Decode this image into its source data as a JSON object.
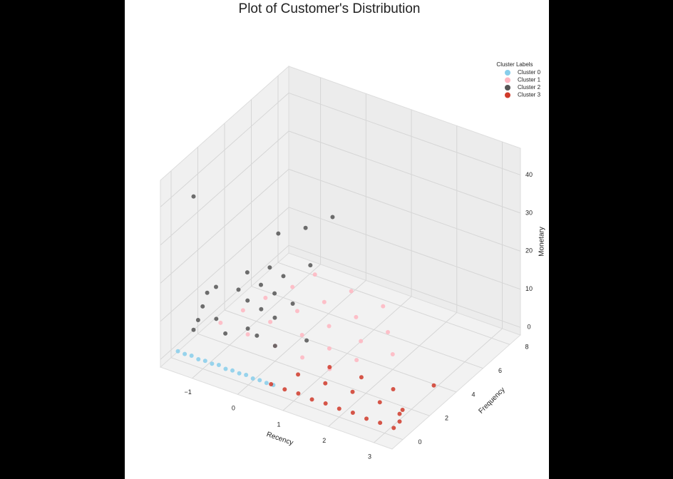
{
  "chart_data": {
    "type": "scatter3d",
    "title": "Plot of Customer's Distribution",
    "xlabel": "Recency",
    "ylabel": "Frequency",
    "zlabel": "Monetary",
    "legend_title": "Cluster Labels",
    "legend": "upper right",
    "grid": true,
    "xlim": [
      -1.7,
      3.4
    ],
    "ylim": [
      -0.8,
      8.8
    ],
    "zlim": [
      -2,
      47
    ],
    "xticks": [
      {
        "value": -1,
        "label": "−1"
      },
      0,
      1,
      2,
      3
    ],
    "yticks": [
      0,
      2,
      4,
      6,
      8
    ],
    "zticks": [
      0,
      10,
      20,
      30,
      40
    ],
    "series": [
      {
        "name": "Cluster 0",
        "color": "#87ceeb",
        "x": [
          -1.55,
          -1.4,
          -1.25,
          -1.1,
          -0.95,
          -0.8,
          -0.65,
          -0.5,
          -0.35,
          -0.2,
          -0.05,
          0.1,
          0.25,
          0.4,
          0.55
        ],
        "y": [
          0,
          0,
          0,
          0,
          0,
          0,
          0,
          0,
          0,
          0,
          0,
          0,
          0,
          0,
          0
        ],
        "z": [
          0.3,
          0.2,
          0.4,
          0.1,
          0.3,
          0.2,
          0.5,
          0.1,
          0.3,
          0.2,
          0.4,
          0.1,
          0.3,
          0.2,
          0.3
        ]
      },
      {
        "name": "Cluster 1",
        "color": "#ffb6c1",
        "x": [
          -1.2,
          -0.6,
          0.0,
          0.6,
          1.2,
          -1.0,
          -0.4,
          0.3,
          0.9,
          1.5,
          -0.8,
          -0.1,
          0.6,
          1.3,
          2.0,
          -0.5,
          0.2,
          0.9,
          1.6,
          -0.3,
          0.5,
          1.2
        ],
        "y": [
          2,
          2,
          2,
          2,
          2,
          3,
          3,
          3,
          3,
          3,
          4,
          4,
          4,
          4,
          4,
          5,
          5,
          5,
          5,
          6,
          6,
          6
        ],
        "z": [
          3,
          2.5,
          2,
          1.5,
          1,
          4,
          3.5,
          3,
          2,
          1.5,
          5,
          4.5,
          3.5,
          2.5,
          2,
          6,
          5,
          4,
          3,
          7,
          6,
          5
        ]
      },
      {
        "name": "Cluster 2",
        "color": "#555555",
        "x": [
          -1.5,
          -1.4,
          -1.3,
          -1.2,
          -1.0,
          -0.8,
          -0.6,
          -0.4,
          -1.3,
          -1.1,
          -0.9,
          -0.6,
          -0.3,
          -1.2,
          -0.9,
          -0.6,
          -0.2,
          -1.0,
          -0.7,
          -0.4,
          -1.4,
          -1.5,
          -0.8,
          -0.5,
          0.0,
          0.4
        ],
        "y": [
          1,
          1,
          1,
          1,
          1,
          1,
          2,
          2,
          2,
          3,
          3,
          3,
          3,
          4,
          4,
          4,
          4,
          5,
          5,
          6,
          7,
          1,
          7,
          8,
          2,
          3
        ],
        "z": [
          3,
          6,
          10,
          14,
          8,
          5,
          4,
          3,
          12,
          9,
          7,
          6,
          5,
          10,
          8,
          7,
          6,
          9,
          8,
          9,
          10,
          38,
          14,
          15,
          2,
          2
        ]
      },
      {
        "name": "Cluster 3",
        "color": "#d03a2a",
        "x": [
          0.5,
          0.8,
          1.1,
          1.4,
          1.7,
          2.0,
          2.3,
          2.6,
          2.9,
          3.2,
          0.8,
          1.4,
          2.0,
          2.6,
          3.1,
          1.2,
          1.9,
          2.6,
          3.2,
          3.3,
          3.3
        ],
        "y": [
          0,
          0,
          0,
          0,
          0,
          0,
          0,
          0,
          0,
          0,
          1,
          1,
          1,
          1,
          1,
          2,
          2,
          2,
          3,
          0.1,
          0.1
        ],
        "z": [
          0.3,
          0.2,
          0.4,
          0.1,
          0.3,
          0.2,
          0.4,
          0.1,
          0.3,
          0.2,
          1,
          1.2,
          1.5,
          1.3,
          1.4,
          1.5,
          1.8,
          1.6,
          2,
          2,
          4
        ]
      }
    ]
  }
}
